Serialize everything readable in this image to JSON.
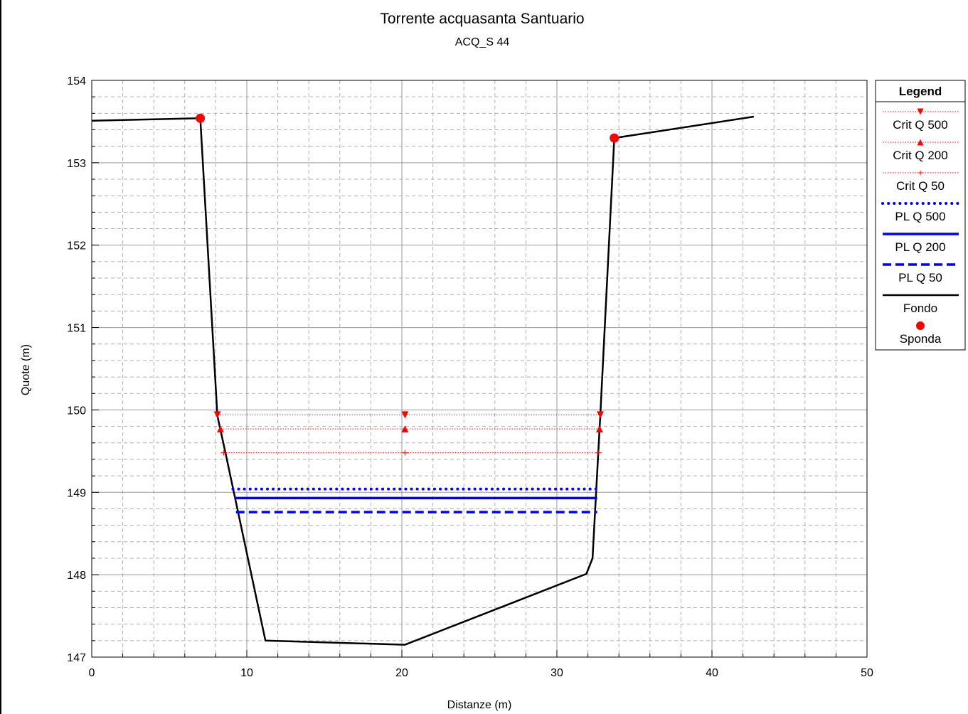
{
  "chart_data": {
    "type": "line",
    "title": "Torrente acquasanta Santuario",
    "subtitle": "ACQ_S 44",
    "xlabel": "Distanze (m)",
    "ylabel": "Quote (m)",
    "xlim": [
      0,
      50
    ],
    "ylim": [
      147,
      154
    ],
    "x_ticks": [
      0,
      10,
      20,
      30,
      40,
      50
    ],
    "y_ticks": [
      147,
      148,
      149,
      150,
      151,
      152,
      153,
      154
    ],
    "x_minor_step": 2,
    "y_minor_step": 0.2,
    "grid": true,
    "legend_title": "Legend",
    "legend_position": "right",
    "series": [
      {
        "name": "Crit Q 500",
        "color": "#ff0000",
        "style": "thin-dotted",
        "marker": "triangle-down",
        "x_start": 8.1,
        "x_end": 32.8,
        "y": 149.94,
        "marker_x": [
          8.1,
          20.2,
          32.8
        ]
      },
      {
        "name": "Crit Q 200",
        "color": "#ff0000",
        "style": "thin-dotted",
        "marker": "triangle-up",
        "x_start": 8.3,
        "x_end": 32.75,
        "y": 149.77,
        "marker_x": [
          8.3,
          20.2,
          32.75
        ]
      },
      {
        "name": "Crit Q 50",
        "color": "#ff0000",
        "style": "thin-dotted",
        "marker": "plus",
        "x_start": 8.5,
        "x_end": 32.7,
        "y": 149.48,
        "marker_x": [
          8.5,
          20.2,
          32.7
        ]
      },
      {
        "name": "PL Q 500",
        "color": "#0000ff",
        "style": "dotted",
        "x_start": 9.1,
        "x_end": 32.6,
        "y": 149.04
      },
      {
        "name": "PL Q 200",
        "color": "#0000ff",
        "style": "solid",
        "x_start": 9.2,
        "x_end": 32.6,
        "y": 148.93
      },
      {
        "name": "PL Q 50",
        "color": "#0000ff",
        "style": "dashed",
        "x_start": 9.3,
        "x_end": 32.6,
        "y": 148.76
      },
      {
        "name": "Fondo",
        "color": "#000000",
        "style": "solid",
        "points": [
          [
            0,
            153.51
          ],
          [
            7.0,
            153.54
          ],
          [
            7.0,
            153.54
          ],
          [
            8.1,
            149.93
          ],
          [
            8.3,
            149.76
          ],
          [
            8.6,
            149.5
          ],
          [
            11.2,
            147.2
          ],
          [
            20.2,
            147.15
          ],
          [
            31.9,
            148.01
          ],
          [
            32.3,
            148.2
          ],
          [
            32.8,
            149.93
          ],
          [
            33.7,
            153.3
          ],
          [
            42.7,
            153.56
          ]
        ]
      },
      {
        "name": "Sponda",
        "color": "#ff0000",
        "style": "marker",
        "marker": "circle",
        "points": [
          [
            7.0,
            153.54
          ],
          [
            33.7,
            153.3
          ]
        ]
      }
    ]
  }
}
